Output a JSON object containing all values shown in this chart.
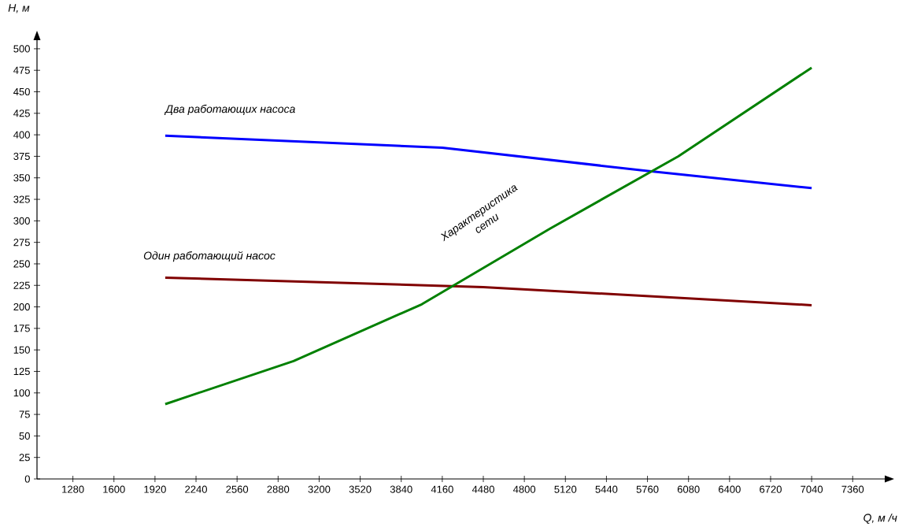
{
  "chart_data": {
    "type": "line",
    "xlabel": "Q, м /ч",
    "ylabel": "H, м",
    "xlim": [
      1000,
      7610
    ],
    "ylim": [
      0,
      510
    ],
    "xticks": [
      1280,
      1600,
      1920,
      2240,
      2560,
      2880,
      3200,
      3520,
      3840,
      4160,
      4480,
      4800,
      5120,
      5440,
      5760,
      6080,
      6400,
      6720,
      7040,
      7360
    ],
    "yticks": [
      0,
      25,
      50,
      75,
      100,
      125,
      150,
      175,
      200,
      225,
      250,
      275,
      300,
      325,
      350,
      375,
      400,
      425,
      450,
      475,
      500
    ],
    "grid": false,
    "legend": false,
    "marker": "none",
    "line_style": "solid",
    "series": [
      {
        "name": "Два работающих насоса",
        "color": "#0000ff",
        "x": [
          2000,
          4160,
          5760,
          7040
        ],
        "values": [
          399,
          385,
          358,
          338
        ]
      },
      {
        "name": "Один работающий насос",
        "color": "#800000",
        "x": [
          2000,
          4480,
          7040
        ],
        "values": [
          234,
          223,
          202
        ]
      },
      {
        "name": "Характеристика сети",
        "color": "#008000",
        "x": [
          2000,
          3000,
          4000,
          5000,
          6000,
          7040
        ],
        "values": [
          87,
          137,
          203,
          291,
          375,
          478
        ]
      }
    ]
  }
}
